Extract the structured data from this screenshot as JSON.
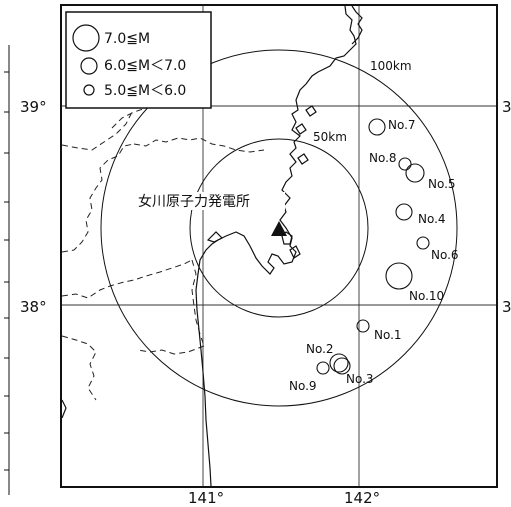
{
  "map": {
    "legend": [
      {
        "label": "7.0≦M",
        "class": "large"
      },
      {
        "label": "6.0≦M＜7.0",
        "class": "medium"
      },
      {
        "label": "5.0≦M＜6.0",
        "class": "small"
      }
    ],
    "lat_labels": {
      "lat39": "39°",
      "lat38": "38°",
      "lat39_right": "3",
      "lat38_right": "3"
    },
    "lon_labels": {
      "lon141": "141°",
      "lon142": "142°"
    },
    "range_labels": {
      "r100": "100km",
      "r50": "50km"
    },
    "site_label": "女川原子力発電所",
    "epicenters": [
      {
        "id": "No.1",
        "class": "small"
      },
      {
        "id": "No.2",
        "class": "medium"
      },
      {
        "id": "No.3",
        "class": "medium"
      },
      {
        "id": "No.4",
        "class": "medium"
      },
      {
        "id": "No.5",
        "class": "medium"
      },
      {
        "id": "No.6",
        "class": "small"
      },
      {
        "id": "No.7",
        "class": "medium"
      },
      {
        "id": "No.8",
        "class": "small"
      },
      {
        "id": "No.9",
        "class": "small"
      },
      {
        "id": "No.10",
        "class": "large"
      }
    ],
    "colors": {
      "ink": "#111111",
      "background": "#ffffff"
    }
  }
}
